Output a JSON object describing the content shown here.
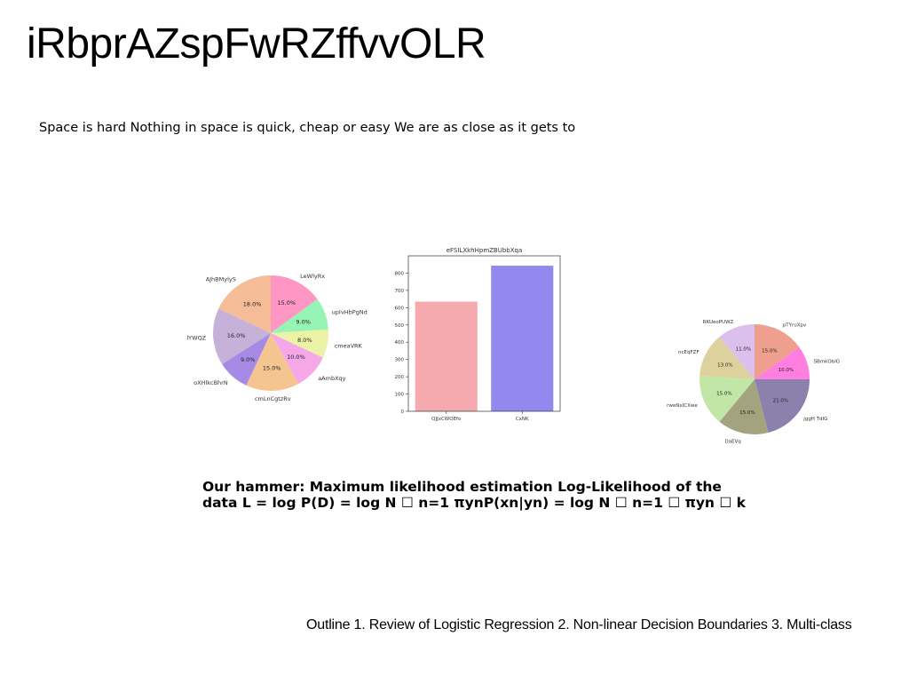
{
  "slide": {
    "title": "iRbprAZspFwRZffvvOLR",
    "subtitle": "Space is hard Nothing in space is quick, cheap or easy We are as close as it gets to",
    "bold_line_1": "Our hammer: Maximum likelihood estimation Log-Likelihood of the",
    "bold_line_2": "data L = log P(D) = log N ☐ n=1 πynP(xn|yn) = log N ☐ n=1 ☐ πyn ☐ k",
    "outline": "Outline 1. Review of Logistic Regression 2. Non-linear Decision Boundaries 3. Multi-class"
  },
  "chart_data": [
    {
      "type": "pie",
      "title": "",
      "labels": [
        "LeWlyRx",
        "upIvHbPgNd",
        "cmeaVRK",
        "aAmbXqy",
        "cmLnCgtzRv",
        "oXHlkcBhrN",
        "lYWQZ",
        "AJhBMylyS"
      ],
      "values": [
        15.0,
        9.0,
        8.0,
        10.0,
        15.0,
        9.0,
        16.0,
        18.0
      ],
      "value_labels": [
        "15.0%",
        "9.0%",
        "8.0%",
        "10.0%",
        "15.0%",
        "9.0%",
        "16.0%",
        "18.0%"
      ],
      "colors": [
        "#ff96c4",
        "#96f5b4",
        "#ecf2a6",
        "#f4a8e8",
        "#f4c590",
        "#a58be6",
        "#c6b2d9",
        "#f5bc98"
      ]
    },
    {
      "type": "bar",
      "title": "eFSILXkhHpmZBUbbXqa",
      "categories": [
        "QJJxCWOEfo",
        "CxNK"
      ],
      "values": [
        635,
        843
      ],
      "colors": [
        "#f7a9b0",
        "#9189ef"
      ],
      "ylim": [
        0,
        900
      ],
      "yticks": [
        0,
        100,
        200,
        300,
        400,
        500,
        600,
        700,
        800
      ],
      "xlabel": "",
      "ylabel": ""
    },
    {
      "type": "pie",
      "title": "",
      "labels": [
        "pTYruXpv",
        "SBmkObIG",
        "jggH TdIG",
        "DaEVq",
        "rweNxICXwe",
        "ncEqFZF",
        "RKUeoPUWZ"
      ],
      "values": [
        15.0,
        10.0,
        21.0,
        15.0,
        15.0,
        13.0,
        11.0
      ],
      "value_labels": [
        "15.0%",
        "10.0%",
        "21.0%",
        "15.0%",
        "15.0%",
        "13.0%",
        "11.0%"
      ],
      "colors": [
        "#ee9f8e",
        "#ff7fe0",
        "#8c81ad",
        "#a3a37f",
        "#c1e6a5",
        "#ddd29e",
        "#dbbfec"
      ]
    }
  ]
}
